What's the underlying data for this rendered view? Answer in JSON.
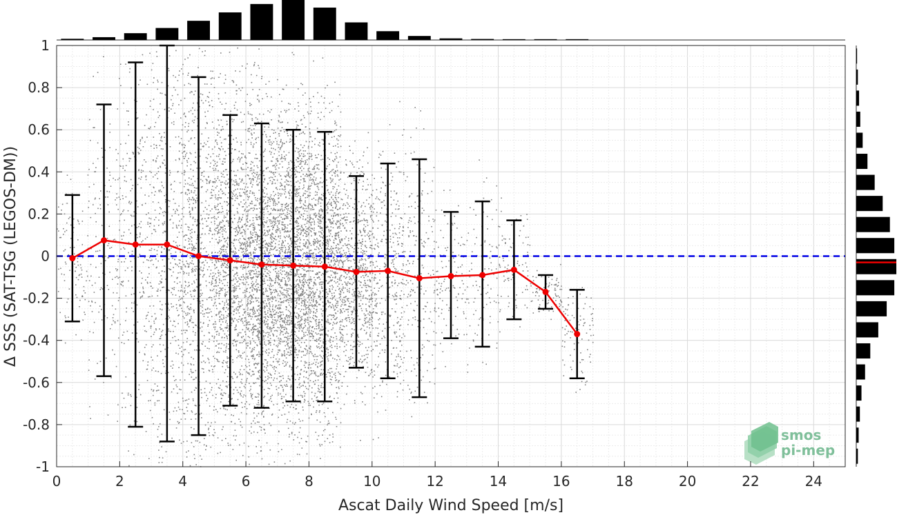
{
  "chart_data": {
    "type": "scatter",
    "xlabel": "Ascat Daily Wind Speed [m/s]",
    "ylabel": "Δ SSS (SAT-TSG (LEGOS-DM))",
    "xlim": [
      0,
      25
    ],
    "ylim": [
      -1,
      1
    ],
    "xticks": [
      "0",
      "2",
      "4",
      "6",
      "8",
      "10",
      "12",
      "14",
      "16",
      "18",
      "20",
      "22",
      "24"
    ],
    "yticks": [
      "-1",
      "-0.8",
      "-0.6",
      "-0.4",
      "-0.2",
      "0",
      "0.2",
      "0.4",
      "0.6",
      "0.8",
      "1"
    ],
    "grid": true,
    "reference_line": {
      "y": 0,
      "style": "dashed",
      "color": "#0000e6"
    },
    "scatter_color": "#808080",
    "series": [
      {
        "type": "line-errorbar",
        "color": "#ee0000",
        "errorbar_color": "#000000",
        "x": [
          0.5,
          1.5,
          2.5,
          3.5,
          4.5,
          5.5,
          6.5,
          7.5,
          8.5,
          9.5,
          10.5,
          11.5,
          12.5,
          13.5,
          14.5,
          15.5,
          16.5
        ],
        "mean": [
          -0.01,
          0.075,
          0.055,
          0.055,
          0.0,
          -0.02,
          -0.04,
          -0.045,
          -0.05,
          -0.075,
          -0.07,
          -0.105,
          -0.095,
          -0.09,
          -0.065,
          -0.17,
          -0.37
        ],
        "upper": [
          0.29,
          0.72,
          0.92,
          1.0,
          0.85,
          0.67,
          0.63,
          0.6,
          0.59,
          0.38,
          0.44,
          0.46,
          0.21,
          0.26,
          0.17,
          -0.09,
          -0.16
        ],
        "lower": [
          -0.31,
          -0.57,
          -0.81,
          -0.88,
          -0.85,
          -0.71,
          -0.72,
          -0.69,
          -0.69,
          -0.53,
          -0.58,
          -0.67,
          -0.39,
          -0.43,
          -0.3,
          -0.25,
          -0.58
        ]
      }
    ],
    "top_histogram": {
      "color": "#000000",
      "bin_centers": [
        0.5,
        1.5,
        2.5,
        3.5,
        4.5,
        5.5,
        6.5,
        7.5,
        8.5,
        9.5,
        10.5,
        11.5,
        12.5,
        13.5,
        14.5,
        15.5,
        16.5
      ],
      "relative_counts": [
        0.03,
        0.07,
        0.17,
        0.3,
        0.48,
        0.69,
        0.9,
        1.0,
        0.81,
        0.44,
        0.22,
        0.1,
        0.04,
        0.025,
        0.02,
        0.02,
        0.02
      ]
    },
    "right_histogram": {
      "color": "#000000",
      "median_line": {
        "y": -0.03,
        "color": "#ee0000"
      },
      "bin_centers": [
        -0.95,
        -0.85,
        -0.75,
        -0.65,
        -0.55,
        -0.45,
        -0.35,
        -0.25,
        -0.15,
        -0.05,
        0.05,
        0.15,
        0.25,
        0.35,
        0.45,
        0.55,
        0.65,
        0.75,
        0.85,
        0.95
      ],
      "relative_counts": [
        0.04,
        0.06,
        0.09,
        0.13,
        0.22,
        0.35,
        0.55,
        0.76,
        0.95,
        1.0,
        0.95,
        0.84,
        0.66,
        0.46,
        0.28,
        0.16,
        0.1,
        0.07,
        0.04,
        0.02
      ]
    }
  },
  "logo": {
    "line1": "smos",
    "line2": "pi-mep"
  }
}
